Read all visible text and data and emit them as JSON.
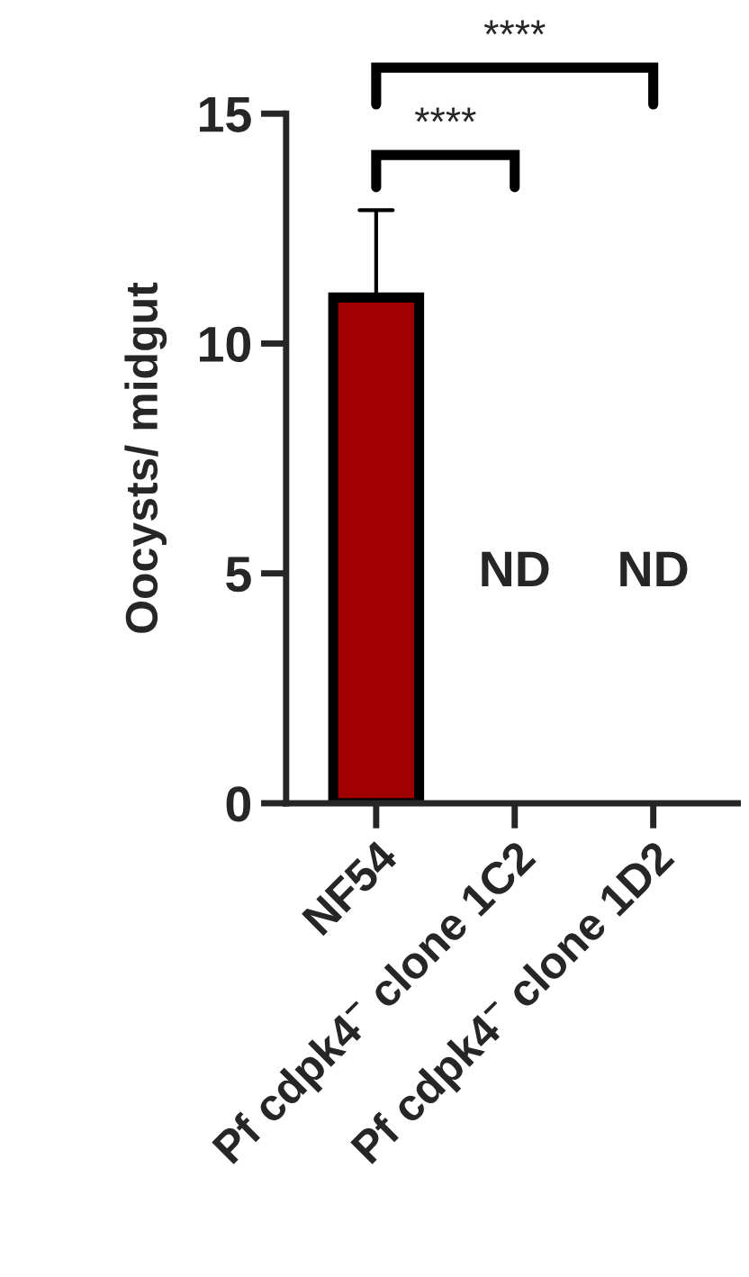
{
  "chart_data": {
    "type": "bar",
    "ylabel": "Oocysts/ midgut",
    "categories": [
      "NF54",
      "Pf cdpk4$^{−}$ clone 1C2",
      "Pf cdpk4$^{−}$ clone 1D2"
    ],
    "values": [
      11,
      null,
      null
    ],
    "color": "#a00000",
    "errors": [
      1.9,
      null,
      null
    ],
    "ylim": [
      0,
      15
    ],
    "yticks": [
      0,
      5,
      10,
      15
    ],
    "grid": false,
    "legend": false,
    "annotations": [
      "****",
      "****",
      "ND",
      "ND"
    ]
  }
}
